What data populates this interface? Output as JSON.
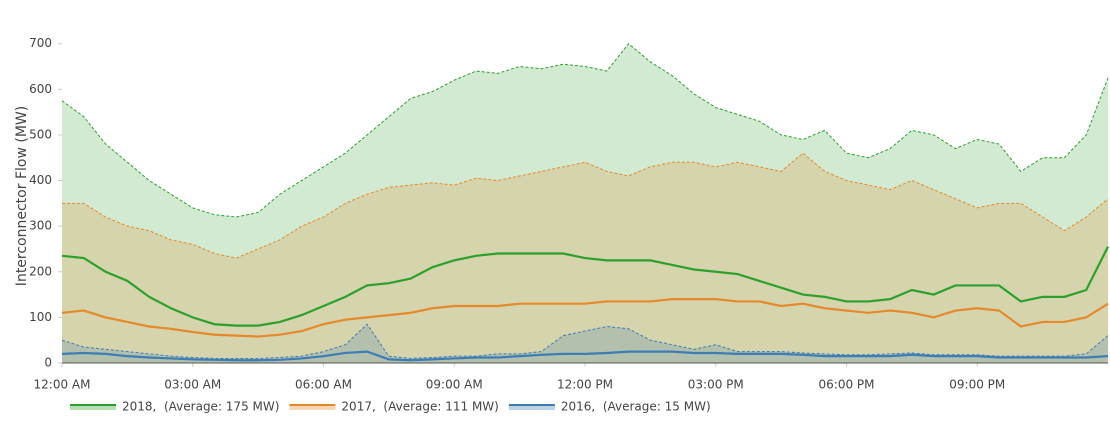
{
  "chart_data": {
    "type": "line",
    "y_label": "Interconnector Flow (MW)",
    "xlim": [
      0,
      24
    ],
    "ylim": [
      0,
      730
    ],
    "xticks": [
      {
        "value": 0,
        "label": "12:00 AM"
      },
      {
        "value": 3,
        "label": "03:00 AM"
      },
      {
        "value": 6,
        "label": "06:00 AM"
      },
      {
        "value": 9,
        "label": "09:00 AM"
      },
      {
        "value": 12,
        "label": "12:00 PM"
      },
      {
        "value": 15,
        "label": "03:00 PM"
      },
      {
        "value": 18,
        "label": "06:00 PM"
      },
      {
        "value": 21,
        "label": "09:00 PM"
      }
    ],
    "yticks": [
      0,
      100,
      200,
      300,
      400,
      500,
      600,
      700
    ],
    "x": [
      0,
      0.5,
      1,
      1.5,
      2,
      2.5,
      3,
      3.5,
      4,
      4.5,
      5,
      5.5,
      6,
      6.5,
      7,
      7.5,
      8,
      8.5,
      9,
      9.5,
      10,
      10.5,
      11,
      11.5,
      12,
      12.5,
      13,
      13.5,
      14,
      14.5,
      15,
      15.5,
      16,
      16.5,
      17,
      17.5,
      18,
      18.5,
      19,
      19.5,
      20,
      20.5,
      21,
      21.5,
      22,
      22.5,
      23,
      23.5,
      24
    ],
    "legend": "bottom-left",
    "series": [
      {
        "name": "2018,  (Average: 175 MW)",
        "color": "#2ca02c",
        "values": [
          235,
          230,
          200,
          180,
          145,
          120,
          100,
          85,
          82,
          82,
          90,
          105,
          125,
          145,
          170,
          175,
          185,
          210,
          225,
          235,
          240,
          240,
          240,
          240,
          230,
          225,
          225,
          225,
          215,
          205,
          200,
          195,
          180,
          165,
          150,
          145,
          135,
          135,
          140,
          160,
          150,
          170,
          170,
          170,
          135,
          145,
          145,
          160,
          255
        ],
        "upper": [
          575,
          540,
          480,
          440,
          400,
          370,
          340,
          325,
          320,
          330,
          370,
          400,
          430,
          460,
          500,
          540,
          580,
          595,
          620,
          640,
          635,
          650,
          645,
          655,
          650,
          640,
          700,
          660,
          630,
          590,
          560,
          545,
          530,
          500,
          490,
          510,
          460,
          450,
          470,
          510,
          500,
          470,
          490,
          480,
          420,
          450,
          450,
          500,
          625
        ]
      },
      {
        "name": "2017,  (Average: 111 MW)",
        "color": "#e6892b",
        "values": [
          110,
          115,
          100,
          90,
          80,
          75,
          68,
          62,
          60,
          58,
          62,
          70,
          85,
          95,
          100,
          105,
          110,
          120,
          125,
          125,
          125,
          130,
          130,
          130,
          130,
          135,
          135,
          135,
          140,
          140,
          140,
          135,
          135,
          125,
          130,
          120,
          115,
          110,
          115,
          110,
          100,
          115,
          120,
          115,
          80,
          90,
          90,
          100,
          130
        ],
        "upper": [
          350,
          350,
          320,
          300,
          290,
          270,
          260,
          240,
          230,
          250,
          270,
          300,
          320,
          350,
          370,
          385,
          390,
          395,
          390,
          405,
          400,
          410,
          420,
          430,
          440,
          420,
          410,
          430,
          440,
          440,
          430,
          440,
          430,
          420,
          460,
          420,
          400,
          390,
          380,
          400,
          380,
          360,
          340,
          350,
          350,
          320,
          290,
          320,
          360
        ]
      },
      {
        "name": "2016,  (Average: 15 MW)",
        "color": "#3d7db5",
        "values": [
          20,
          22,
          20,
          15,
          12,
          10,
          8,
          7,
          6,
          6,
          7,
          10,
          15,
          22,
          25,
          8,
          6,
          8,
          10,
          12,
          12,
          15,
          18,
          20,
          20,
          22,
          25,
          25,
          25,
          22,
          22,
          20,
          20,
          20,
          18,
          15,
          15,
          15,
          15,
          18,
          15,
          15,
          15,
          12,
          12,
          12,
          12,
          12,
          15
        ],
        "upper": [
          50,
          35,
          30,
          25,
          20,
          15,
          12,
          10,
          10,
          10,
          12,
          15,
          25,
          40,
          85,
          15,
          10,
          12,
          15,
          15,
          20,
          20,
          25,
          60,
          70,
          80,
          75,
          50,
          40,
          30,
          40,
          25,
          25,
          25,
          22,
          20,
          18,
          18,
          20,
          22,
          18,
          18,
          18,
          15,
          15,
          15,
          15,
          20,
          60
        ]
      }
    ]
  }
}
